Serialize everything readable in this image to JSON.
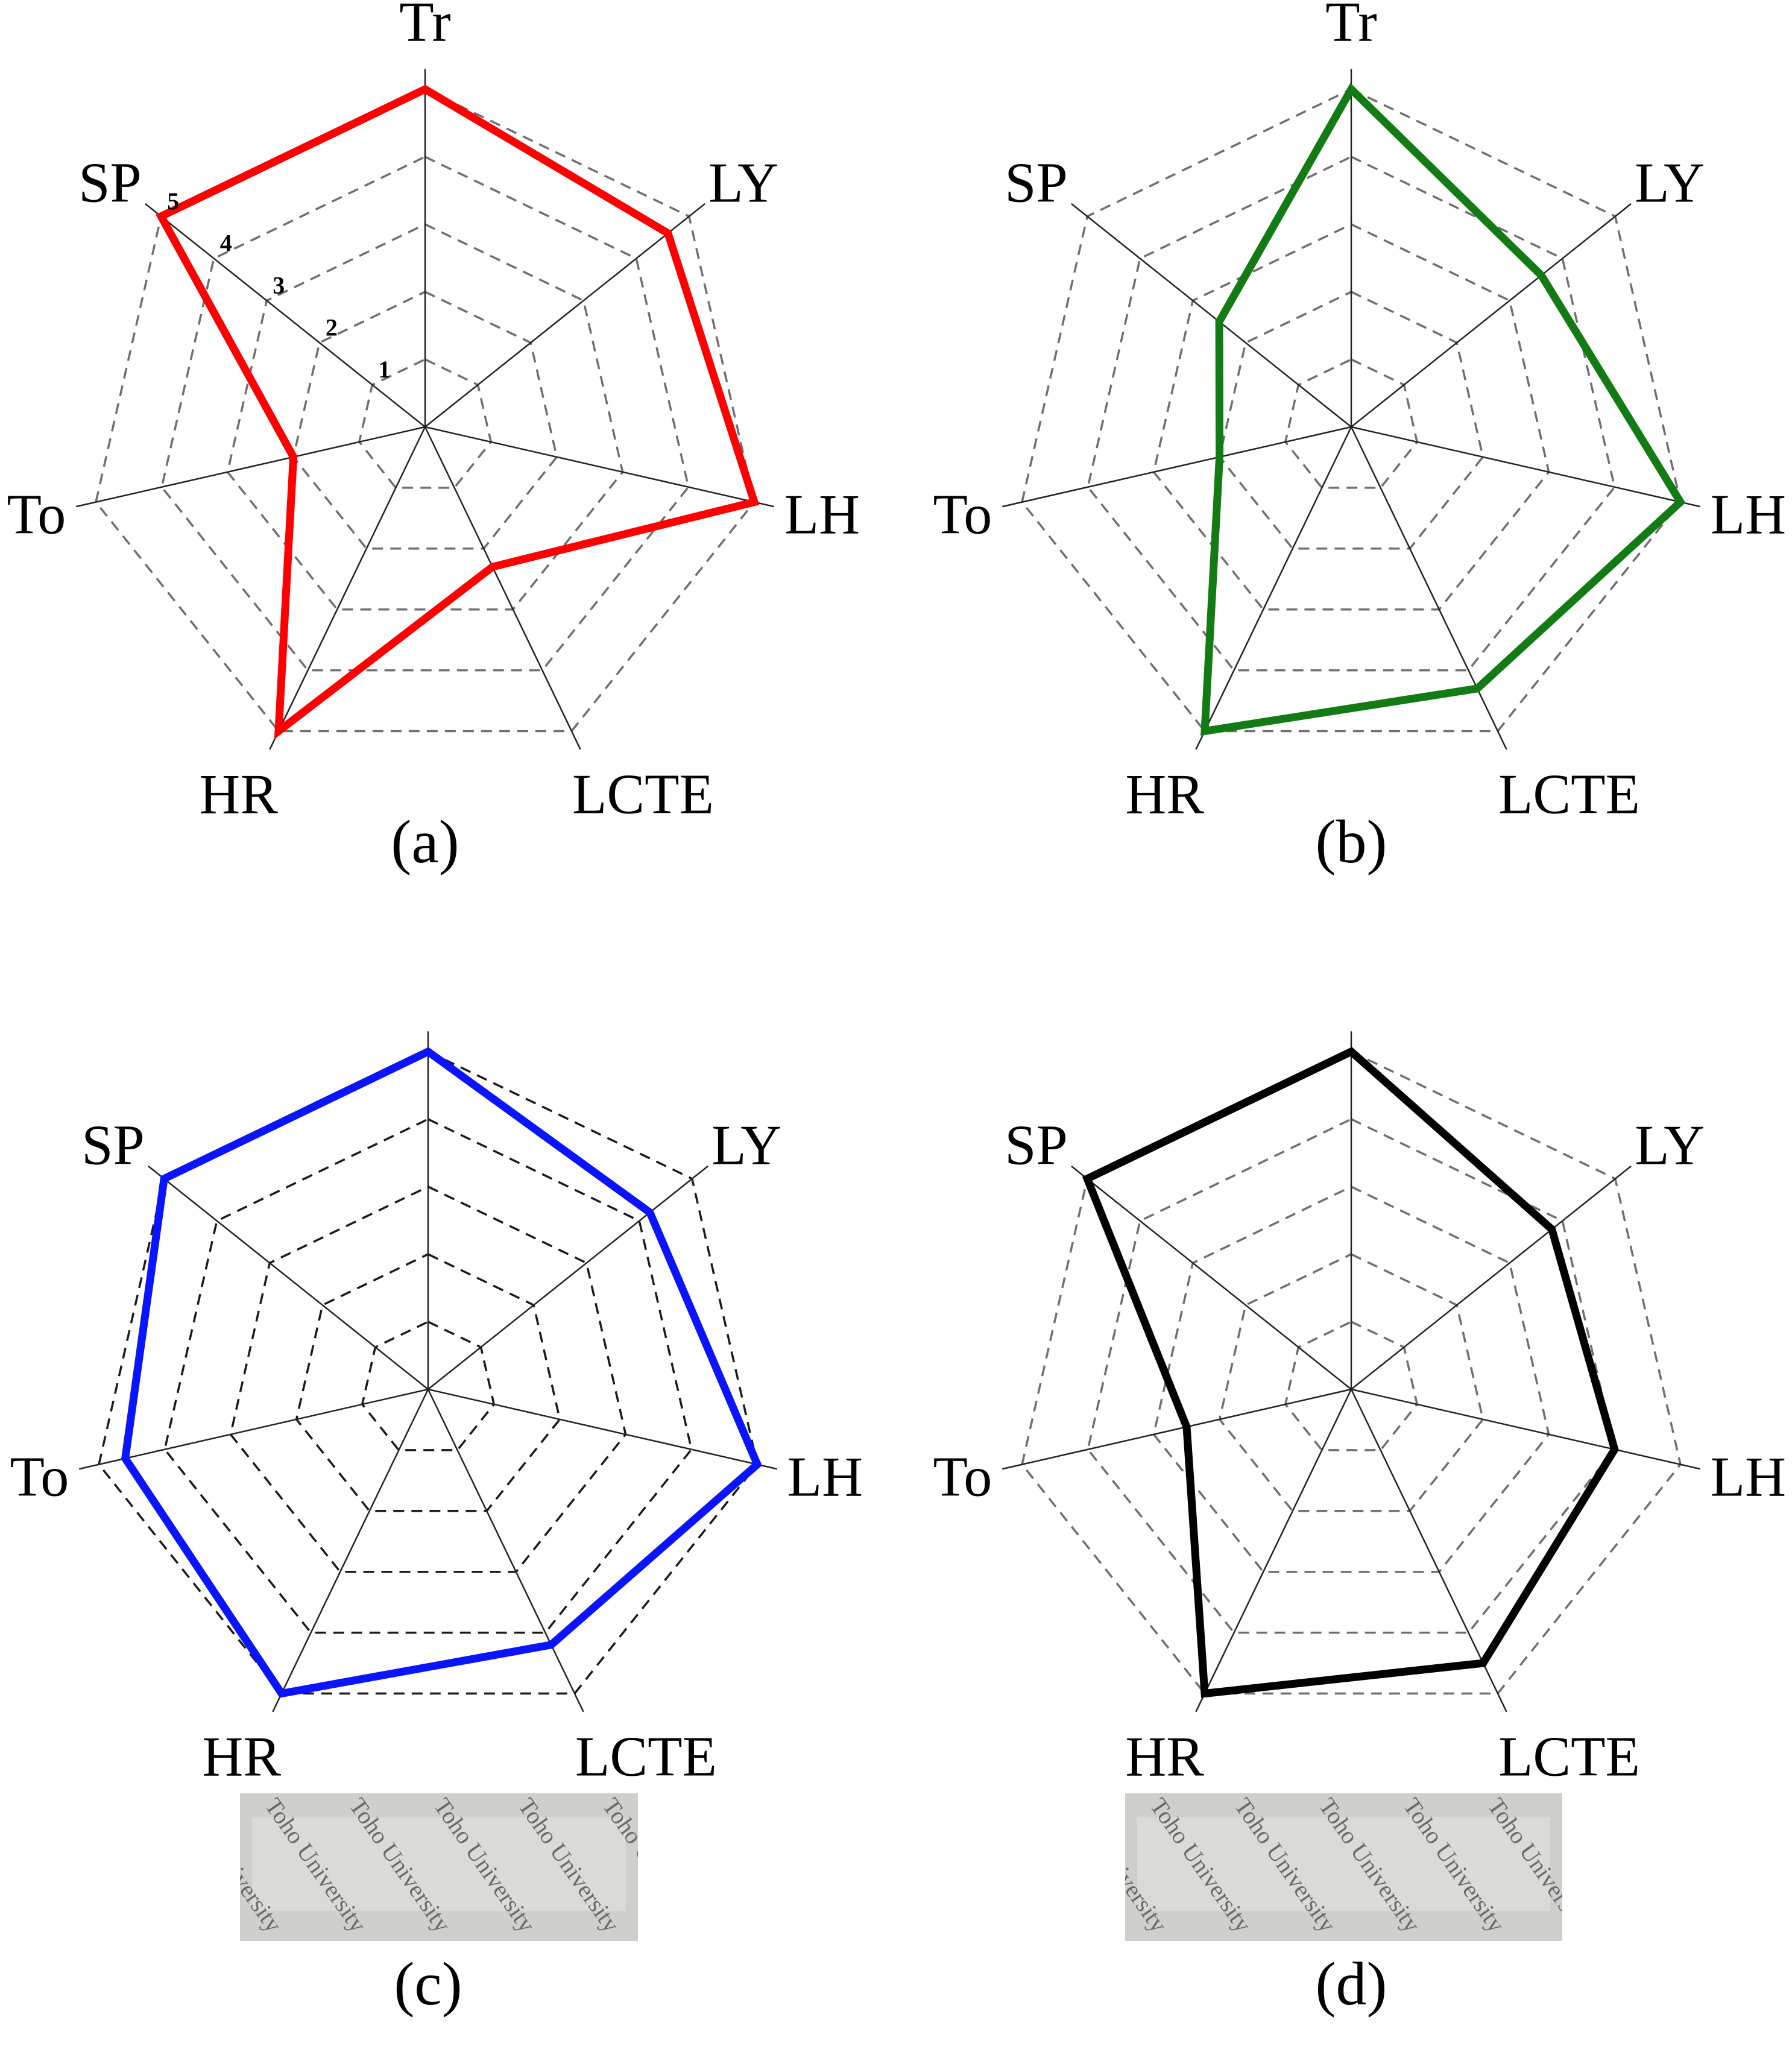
{
  "scale_labels": [
    "1",
    "2",
    "3",
    "4",
    "5"
  ],
  "photo_watermark": "Toho University",
  "chart_data": [
    {
      "type": "radar",
      "panel_label": "(a)",
      "axes": [
        "Tr",
        "LY",
        "LH",
        "LCTE",
        "HR",
        "To",
        "SP"
      ],
      "rmax": 5,
      "levels": [
        1,
        2,
        3,
        4,
        5
      ],
      "grid_color": "#6f6f6f",
      "series": [
        {
          "color": "#ff0000",
          "values": [
            5,
            4.6,
            5,
            2.3,
            5,
            2,
            5
          ]
        }
      ],
      "shows_scale_labels": true,
      "photo": false
    },
    {
      "type": "radar",
      "panel_label": "(b)",
      "axes": [
        "Tr",
        "LY",
        "LH",
        "LCTE",
        "HR",
        "To",
        "SP"
      ],
      "rmax": 5,
      "levels": [
        1,
        2,
        3,
        4,
        5
      ],
      "grid_color": "#6f6f6f",
      "series": [
        {
          "color": "#137b13",
          "values": [
            5,
            3.6,
            5,
            4.3,
            5,
            2,
            2.5
          ]
        }
      ],
      "shows_scale_labels": false,
      "photo": false
    },
    {
      "type": "radar",
      "panel_label": "(c)",
      "axes": [
        "Tr",
        "LY",
        "LH",
        "LCTE",
        "HR",
        "To",
        "SP"
      ],
      "rmax": 5,
      "levels": [
        1,
        2,
        3,
        4,
        5
      ],
      "grid_color": "#1a1a1a",
      "series": [
        {
          "color": "#0a14ff",
          "values": [
            5,
            4.2,
            5,
            4.2,
            5,
            4.6,
            5
          ]
        }
      ],
      "shows_scale_labels": false,
      "photo": true
    },
    {
      "type": "radar",
      "panel_label": "(d)",
      "axes": [
        "Tr",
        "LY",
        "LH",
        "LCTE",
        "HR",
        "To",
        "SP"
      ],
      "rmax": 5,
      "levels": [
        1,
        2,
        3,
        4,
        5
      ],
      "grid_color": "#6f6f6f",
      "series": [
        {
          "color": "#000000",
          "values": [
            5,
            3.8,
            4,
            4.5,
            5,
            2.5,
            5
          ]
        }
      ],
      "shows_scale_labels": false,
      "photo": true
    }
  ]
}
